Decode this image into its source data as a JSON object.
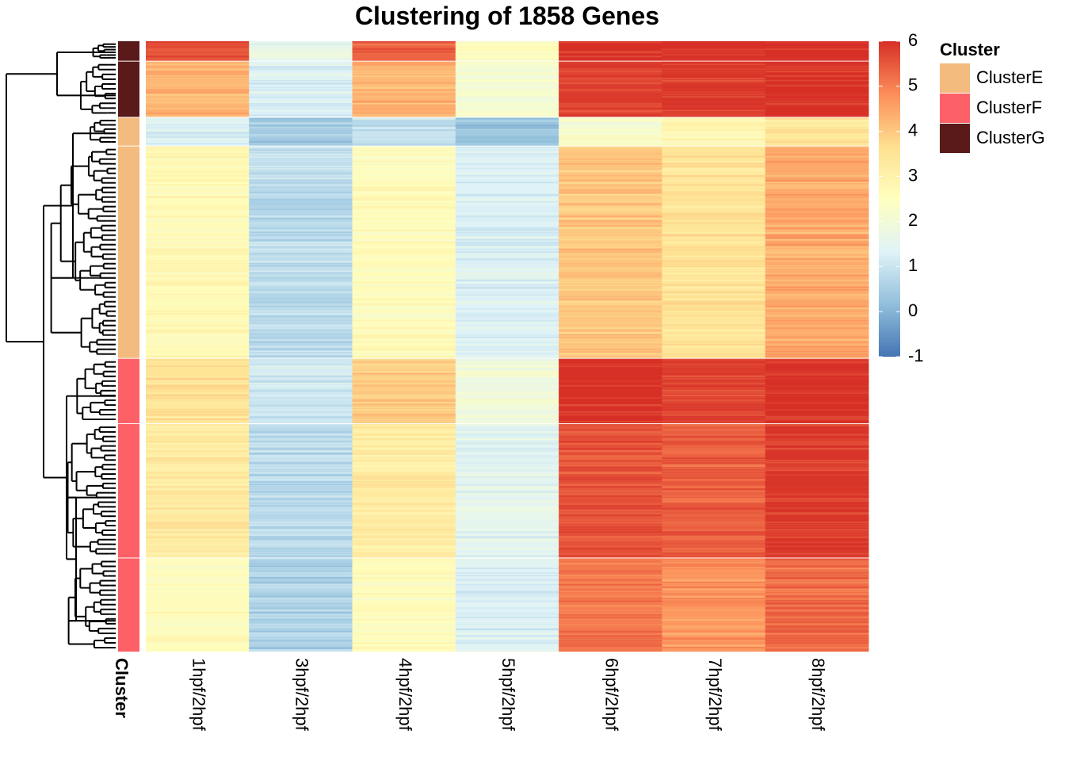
{
  "chart_data": {
    "type": "heatmap",
    "title": "Clustering of 1858 Genes",
    "columns": [
      "1hpf/2hpf",
      "3hpf/2hpf",
      "4hpf/2hpf",
      "5hpf/2hpf",
      "6hpf/2hpf",
      "7hpf/2hpf",
      "8hpf/2hpf"
    ],
    "row_annotation_label": "Cluster",
    "legend": {
      "title": "Cluster",
      "items": [
        {
          "name": "ClusterE",
          "color": "#F4BB7E"
        },
        {
          "name": "ClusterF",
          "color": "#FE6067"
        },
        {
          "name": "ClusterG",
          "color": "#5A1A1A"
        }
      ]
    },
    "color_scale": {
      "min": -1,
      "max": 6,
      "ticks": [
        "6",
        "5",
        "4",
        "3",
        "2",
        "1",
        "0",
        "-1"
      ],
      "colors": [
        "#4575B4",
        "#91BFDB",
        "#E0F3F8",
        "#FFFFBF",
        "#FEE090",
        "#FC8D59",
        "#D73027"
      ]
    },
    "row_blocks": [
      {
        "cluster": "ClusterG",
        "fraction": 0.032,
        "values": [
          5.6,
          1.6,
          5.4,
          2.6,
          6.0,
          6.0,
          6.0
        ]
      },
      {
        "cluster": "ClusterG",
        "fraction": 0.092,
        "values": [
          4.3,
          1.3,
          4.3,
          2.2,
          5.8,
          5.9,
          6.0
        ]
      },
      {
        "cluster": "ClusterE",
        "fraction": 0.047,
        "values": [
          1.3,
          0.4,
          0.9,
          0.3,
          2.2,
          2.8,
          3.3
        ]
      },
      {
        "cluster": "ClusterE",
        "fraction": 0.348,
        "values": [
          2.7,
          0.8,
          2.6,
          1.3,
          4.0,
          3.5,
          4.4
        ]
      },
      {
        "cluster": "ClusterF",
        "fraction": 0.107,
        "values": [
          3.5,
          1.1,
          4.0,
          2.0,
          6.0,
          5.8,
          6.0
        ]
      },
      {
        "cluster": "ClusterF",
        "fraction": 0.22,
        "values": [
          3.2,
          0.8,
          3.2,
          1.5,
          5.6,
          5.4,
          5.9
        ]
      },
      {
        "cluster": "ClusterF",
        "fraction": 0.154,
        "values": [
          2.6,
          0.6,
          2.6,
          1.3,
          5.1,
          4.7,
          5.2
        ]
      }
    ]
  }
}
